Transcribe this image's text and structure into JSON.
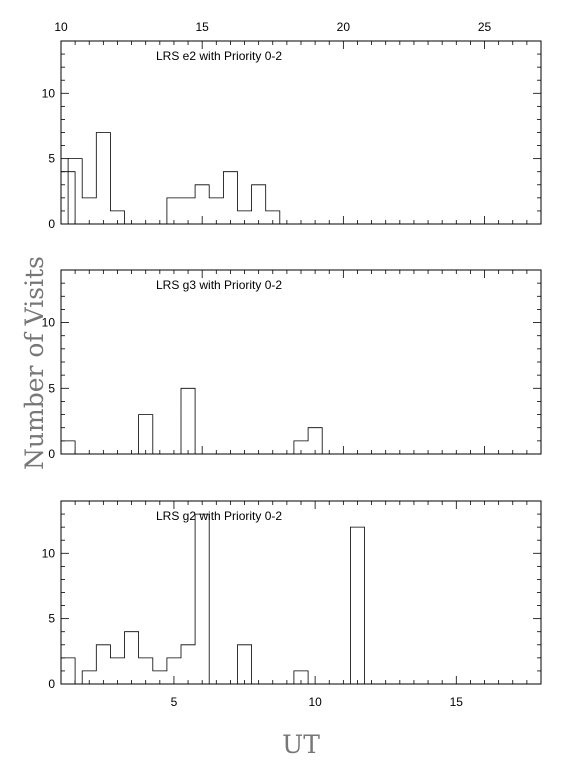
{
  "chart_data": [
    {
      "type": "histogram",
      "label": "LRS e2 with Priority 0-2",
      "bin_width": 0.5,
      "xlim": [
        10,
        27
      ],
      "ylim": [
        0,
        14
      ],
      "x_ticks": [
        10,
        15,
        20,
        25
      ],
      "x_tick_labels": [
        "10",
        "15",
        "20",
        "25"
      ],
      "y_ticks": [
        0,
        5,
        10
      ],
      "y_tick_labels": [
        "0",
        "5",
        "10"
      ],
      "bins": [
        {
          "x": 10.0,
          "count": 4
        },
        {
          "x": 10.25,
          "count": 5
        },
        {
          "x": 10.75,
          "count": 2
        },
        {
          "x": 11.25,
          "count": 7
        },
        {
          "x": 11.75,
          "count": 1
        },
        {
          "x": 12.25,
          "count": 0
        },
        {
          "x": 12.75,
          "count": 0
        },
        {
          "x": 13.25,
          "count": 0
        },
        {
          "x": 13.75,
          "count": 2
        },
        {
          "x": 14.25,
          "count": 2
        },
        {
          "x": 14.75,
          "count": 3
        },
        {
          "x": 15.25,
          "count": 2
        },
        {
          "x": 15.75,
          "count": 4
        },
        {
          "x": 16.25,
          "count": 1
        },
        {
          "x": 16.75,
          "count": 3
        },
        {
          "x": 17.25,
          "count": 1
        }
      ]
    },
    {
      "type": "histogram",
      "label": "LRS g3 with Priority 0-2",
      "bin_width": 0.5,
      "xlim": [
        10,
        27
      ],
      "ylim": [
        0,
        14
      ],
      "x_ticks": [
        10,
        15,
        20,
        25
      ],
      "x_tick_labels": [],
      "y_ticks": [
        0,
        5,
        10
      ],
      "y_tick_labels": [
        "0",
        "5",
        "10"
      ],
      "bins": [
        {
          "x": 10.0,
          "count": 1
        },
        {
          "x": 12.75,
          "count": 3
        },
        {
          "x": 14.25,
          "count": 5
        },
        {
          "x": 18.25,
          "count": 1
        },
        {
          "x": 18.75,
          "count": 2
        }
      ]
    },
    {
      "type": "histogram",
      "label": "LRS g2 with Priority 0-2",
      "bin_width": 0.5,
      "xlim": [
        1,
        18
      ],
      "ylim": [
        0,
        14
      ],
      "x_ticks": [
        5,
        10,
        15
      ],
      "x_tick_labels": [
        "5",
        "10",
        "15"
      ],
      "y_ticks": [
        0,
        5,
        10
      ],
      "y_tick_labels": [
        "0",
        "5",
        "10"
      ],
      "bins": [
        {
          "x": 1.0,
          "count": 2
        },
        {
          "x": 1.25,
          "count": 0
        },
        {
          "x": 1.75,
          "count": 1
        },
        {
          "x": 2.25,
          "count": 3
        },
        {
          "x": 2.75,
          "count": 2
        },
        {
          "x": 3.25,
          "count": 4
        },
        {
          "x": 3.75,
          "count": 2
        },
        {
          "x": 4.25,
          "count": 1
        },
        {
          "x": 4.75,
          "count": 2
        },
        {
          "x": 5.25,
          "count": 3
        },
        {
          "x": 5.75,
          "count": 13
        },
        {
          "x": 6.75,
          "count": 0
        },
        {
          "x": 7.25,
          "count": 3
        },
        {
          "x": 9.25,
          "count": 1
        },
        {
          "x": 11.25,
          "count": 12
        }
      ]
    }
  ],
  "ylabel": "Number of Visits",
  "xlabel": "UT"
}
